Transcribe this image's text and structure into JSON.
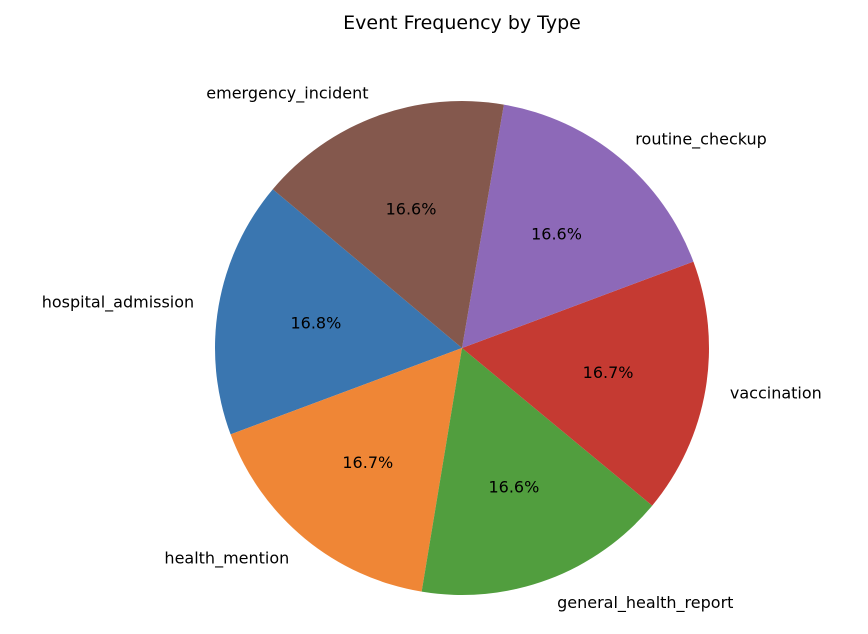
{
  "chart_data": {
    "type": "pie",
    "title": "Event Frequency by Type",
    "slices": [
      {
        "name": "hospital_admission",
        "value": 16.8,
        "label": "16.8%",
        "color": "#3a76b0"
      },
      {
        "name": "health_mention",
        "value": 16.7,
        "label": "16.7%",
        "color": "#ef8636"
      },
      {
        "name": "general_health_report",
        "value": 16.6,
        "label": "16.6%",
        "color": "#519e3e"
      },
      {
        "name": "vaccination",
        "value": 16.7,
        "label": "16.7%",
        "color": "#c53a32"
      },
      {
        "name": "routine_checkup",
        "value": 16.6,
        "label": "16.6%",
        "color": "#8d69b8"
      },
      {
        "name": "emergency_incident",
        "value": 16.6,
        "label": "16.6%",
        "color": "#84584d"
      }
    ],
    "start_angle_deg": 140,
    "direction": "counterclockwise",
    "legend": "none"
  }
}
